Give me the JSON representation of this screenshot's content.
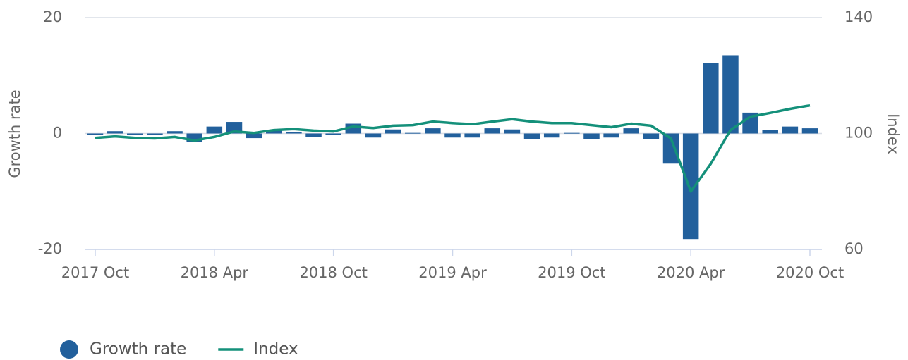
{
  "chart_data": {
    "type": "bar_line",
    "categories": [
      "2017 Oct",
      null,
      null,
      null,
      null,
      null,
      "2018 Apr",
      null,
      null,
      null,
      null,
      null,
      "2018 Oct",
      null,
      null,
      null,
      null,
      null,
      "2019 Apr",
      null,
      null,
      null,
      null,
      null,
      "2019 Oct",
      null,
      null,
      null,
      null,
      null,
      "2020 Apr",
      null,
      null,
      null,
      null,
      null,
      "2020 Oct"
    ],
    "series": [
      {
        "name": "Growth rate",
        "type": "bar",
        "color": "#22609c",
        "axis": "y",
        "values": [
          -0.2,
          0.4,
          -0.3,
          -0.3,
          0.4,
          -1.5,
          1.2,
          2.0,
          -0.8,
          0.6,
          0.2,
          -0.6,
          -0.3,
          1.7,
          -0.7,
          0.7,
          0.1,
          0.9,
          -0.7,
          -0.7,
          0.9,
          0.7,
          -1.0,
          -0.7,
          0.1,
          -1.0,
          -0.7,
          0.9,
          -1.0,
          -5.2,
          -18.2,
          12.1,
          13.5,
          3.6,
          0.6,
          1.2,
          0.9
        ]
      },
      {
        "name": "Index",
        "type": "line",
        "color": "#14907a",
        "axis": "y2",
        "values": [
          98.5,
          99.0,
          98.5,
          98.3,
          98.8,
          97.6,
          98.8,
          100.7,
          100.2,
          101.2,
          101.5,
          101.0,
          100.7,
          102.4,
          101.9,
          102.7,
          102.9,
          104.1,
          103.6,
          103.2,
          104.1,
          104.9,
          104.1,
          103.6,
          103.6,
          102.9,
          102.2,
          103.4,
          102.7,
          98.3,
          80.0,
          89.5,
          101.2,
          105.8,
          107.1,
          108.5,
          109.7
        ]
      }
    ],
    "y_label": "Growth rate",
    "y2_label": "Index",
    "ylim": [
      -20,
      20
    ],
    "yticks": [
      -20,
      0,
      20
    ],
    "y2lim": [
      60,
      140
    ],
    "y2ticks": [
      60,
      100,
      140
    ],
    "grid": true,
    "legend": "bottom-left"
  }
}
